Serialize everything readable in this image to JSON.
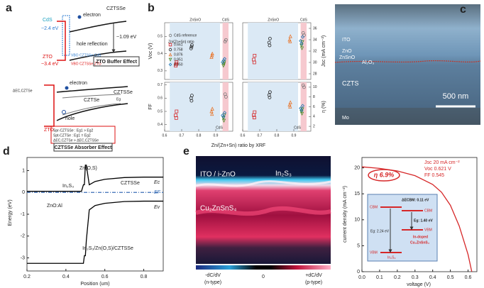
{
  "panels": {
    "a": {
      "label": "a",
      "top": {
        "absorber": "CZTSSe",
        "electron": "electron",
        "cds": "CdS",
        "cds_gap": "~2.4 eV",
        "hole_reflection": "hole reflection",
        "absorber_gap": "~1.09 eV",
        "vbo_cds": "VBO CZTSSe-CdS",
        "zto": "ZTO",
        "zto_gap": "~3.4 eV",
        "vbo_zto": "VBO CZTSSe-ZTO",
        "caption": "ZTO Buffer Effect"
      },
      "bottom": {
        "electron": "electron",
        "delta_ec": "ΔEC,CZTSe",
        "absorber": "CZTSSe",
        "inner": "CZTSe",
        "eg": "Eg",
        "hole": "hole",
        "zto": "ZTO",
        "notes": [
          "Spr-CZTSSe : Eg1 > Eg2",
          "Spt-CZTSe : Eg1 = Eg2",
          "ΔEC,CZTSe > ΔEC,CZTSSe"
        ],
        "caption": "CZTSSe Absorber Effect"
      }
    },
    "b": {
      "label": "b",
      "xlabel": "Zn/(Zn+Sn) ratio by XRF",
      "xlim": [
        0.6,
        1.0
      ],
      "xticks": [
        0.6,
        0.7,
        0.8,
        0.9
      ],
      "section_labels": [
        "ZnSnO",
        "CdS"
      ],
      "bottom_label": "CdS",
      "legend_title": "Zn/(Zn+Sn) ratio",
      "plots": [
        {
          "ylabel": "Voc (V)",
          "field": "voc",
          "col": 0,
          "row": 0,
          "ylim": [
            0.25,
            0.58
          ],
          "yticks": [
            0.3,
            0.4,
            0.5
          ]
        },
        {
          "ylabel": "Jsc (mA cm⁻²)",
          "field": "jsc",
          "col": 1,
          "row": 0,
          "ylim": [
            27,
            37
          ],
          "yticks": [
            28,
            30,
            32,
            34,
            36
          ]
        },
        {
          "ylabel": "FF",
          "field": "ff",
          "col": 0,
          "row": 1,
          "ylim": [
            0.35,
            0.72
          ],
          "yticks": [
            0.4,
            0.5,
            0.6,
            0.7
          ]
        },
        {
          "ylabel": "η (%)",
          "field": "eta",
          "col": 1,
          "row": 1,
          "ylim": [
            1,
            11
          ],
          "yticks": [
            2,
            4,
            6,
            8,
            10
          ]
        }
      ],
      "series": [
        {
          "name": "CdS reference",
          "color": "#777777",
          "marker": "circle",
          "x": [
            0.955,
            0.96
          ],
          "voc": [
            0.47,
            0.48
          ],
          "jsc": [
            35.2,
            34.8
          ],
          "ff": [
            0.63,
            0.61
          ],
          "eta": [
            10.4,
            10.0
          ]
        },
        {
          "name": "0.661",
          "color": "#d62728",
          "marker": "square",
          "x": [
            0.665,
            0.67,
            0.668
          ],
          "voc": [
            0.33,
            0.35,
            0.34
          ],
          "jsc": [
            30.5,
            31.2,
            30.0
          ],
          "ff": [
            0.47,
            0.5,
            0.45
          ],
          "eta": [
            4.3,
            4.9,
            3.8
          ]
        },
        {
          "name": "0.758",
          "color": "#222222",
          "marker": "circle",
          "x": [
            0.755,
            0.76,
            0.758
          ],
          "voc": [
            0.43,
            0.45,
            0.44
          ],
          "jsc": [
            33.5,
            34.2,
            33.0
          ],
          "ff": [
            0.6,
            0.62,
            0.58
          ],
          "eta": [
            8.4,
            9.0,
            7.9
          ]
        },
        {
          "name": "0.876",
          "color": "#e8772e",
          "marker": "triangle",
          "x": [
            0.875,
            0.88,
            0.878
          ],
          "voc": [
            0.38,
            0.4,
            0.39
          ],
          "jsc": [
            34.0,
            34.6,
            33.7
          ],
          "ff": [
            0.5,
            0.52,
            0.48
          ],
          "eta": [
            6.4,
            6.9,
            6.0
          ]
        },
        {
          "name": "0.951",
          "color": "#4a8a2a",
          "marker": "down",
          "x": [
            0.945,
            0.95,
            0.948
          ],
          "voc": [
            0.33,
            0.35,
            0.34
          ],
          "jsc": [
            33.0,
            33.6,
            32.5
          ],
          "ff": [
            0.45,
            0.47,
            0.43
          ],
          "eta": [
            5.0,
            5.5,
            4.6
          ]
        },
        {
          "name": "0.950",
          "color": "#1f77b4",
          "marker": "diamond",
          "x": [
            0.94,
            0.952,
            0.946
          ],
          "voc": [
            0.35,
            0.37,
            0.36
          ],
          "jsc": [
            33.8,
            34.5,
            33.3
          ],
          "ff": [
            0.47,
            0.49,
            0.46
          ],
          "eta": [
            5.7,
            6.2,
            5.3
          ]
        }
      ]
    },
    "c": {
      "label": "c",
      "layers": [
        "ITO",
        "ZnO",
        "ZnSnO",
        "Al₂O₃",
        "CZTS",
        "Mo"
      ],
      "scale_bar": "500 nm"
    },
    "d": {
      "label": "d",
      "type": "line",
      "xlabel": "Position (um)",
      "ylabel": "Energy (eV)",
      "xlim": [
        0.2,
        0.9
      ],
      "ylim": [
        -3.6,
        1.6
      ],
      "xticks": [
        0.2,
        0.4,
        0.6,
        0.8
      ],
      "yticks": [
        1,
        0,
        -1,
        -2,
        -3
      ],
      "labels": {
        "window": "ZnO:Al",
        "in2s3": "In₂S₃",
        "zos": "Zn(O,S)",
        "absorber": "CZTSSe",
        "ec": "Ec",
        "ef": "EF",
        "ev": "Ev",
        "stack": "In₂S₃/Zn(O,S)/CZTSSe"
      },
      "series": [
        {
          "color": "#000000",
          "dashed": false,
          "x": [
            0.2,
            0.48,
            0.49,
            0.495,
            0.5,
            0.505,
            0.52,
            0.55,
            0.6,
            0.7,
            0.8,
            0.9
          ],
          "y": [
            0.05,
            0.05,
            0.35,
            0.35,
            1.25,
            1.25,
            0.35,
            0.5,
            0.6,
            0.68,
            0.7,
            0.7
          ]
        },
        {
          "color": "#3b6fb6",
          "dashed": true,
          "x": [
            0.2,
            0.9
          ],
          "y": [
            0,
            0
          ]
        },
        {
          "color": "#000000",
          "dashed": false,
          "x": [
            0.2,
            0.49,
            0.495,
            0.5,
            0.505,
            0.52,
            0.55,
            0.6,
            0.7,
            0.8,
            0.9
          ],
          "y": [
            -3.25,
            -3.25,
            -2.9,
            -2.9,
            -2.2,
            -0.8,
            -0.6,
            -0.5,
            -0.42,
            -0.4,
            -0.4
          ]
        }
      ]
    },
    "e": {
      "label": "e",
      "map": {
        "top": "ITO / i-ZnO",
        "buffer": "In₂S₃",
        "absorber": "Cu₂ZnSnS₄",
        "scale_left": "-dC/dV",
        "scale_left_note": "(n-type)",
        "scale_mid": "0",
        "scale_right": "+dC/dV",
        "scale_right_note": "(p-type)"
      },
      "chart_data": {
        "type": "line",
        "xlabel": "voltage (V)",
        "ylabel": "current density (mA cm⁻²)",
        "xlim": [
          0,
          0.65
        ],
        "ylim": [
          0,
          22
        ],
        "xticks": [
          {
            "value": 0,
            "label": "0.0"
          },
          0.1,
          0.2,
          0.3,
          0.4,
          0.5,
          0.6
        ],
        "yticks": [
          0,
          5,
          10,
          15,
          20
        ],
        "x": [
          0,
          0.1,
          0.2,
          0.3,
          0.4,
          0.45,
          0.5,
          0.55,
          0.6,
          0.621
        ],
        "series": [
          {
            "color": "#d62728",
            "values": [
              20.2,
              19.9,
              19.4,
              18.5,
              16.8,
              15.3,
              12.8,
              8.8,
              3.3,
              0
            ]
          }
        ],
        "efficiency": "η 6.9%",
        "stats": [
          "Jsc  20 mA cm⁻²",
          "Voc  0.621 V",
          "FF   0.545"
        ],
        "inset": {
          "cbm_left": "CBM",
          "delta": "ΔECBM: 0.11 eV",
          "cbm_right": "CBM",
          "eg_right": "Eg: 1.40 eV",
          "vbm_right": "VBM",
          "doped": "In-doped",
          "doped_material": "Cu₂ZnSnS₄",
          "eg_left": "Eg: 2.24 eV",
          "vbm_left": "VBM",
          "buffer": "In₂S₃"
        }
      }
    }
  }
}
